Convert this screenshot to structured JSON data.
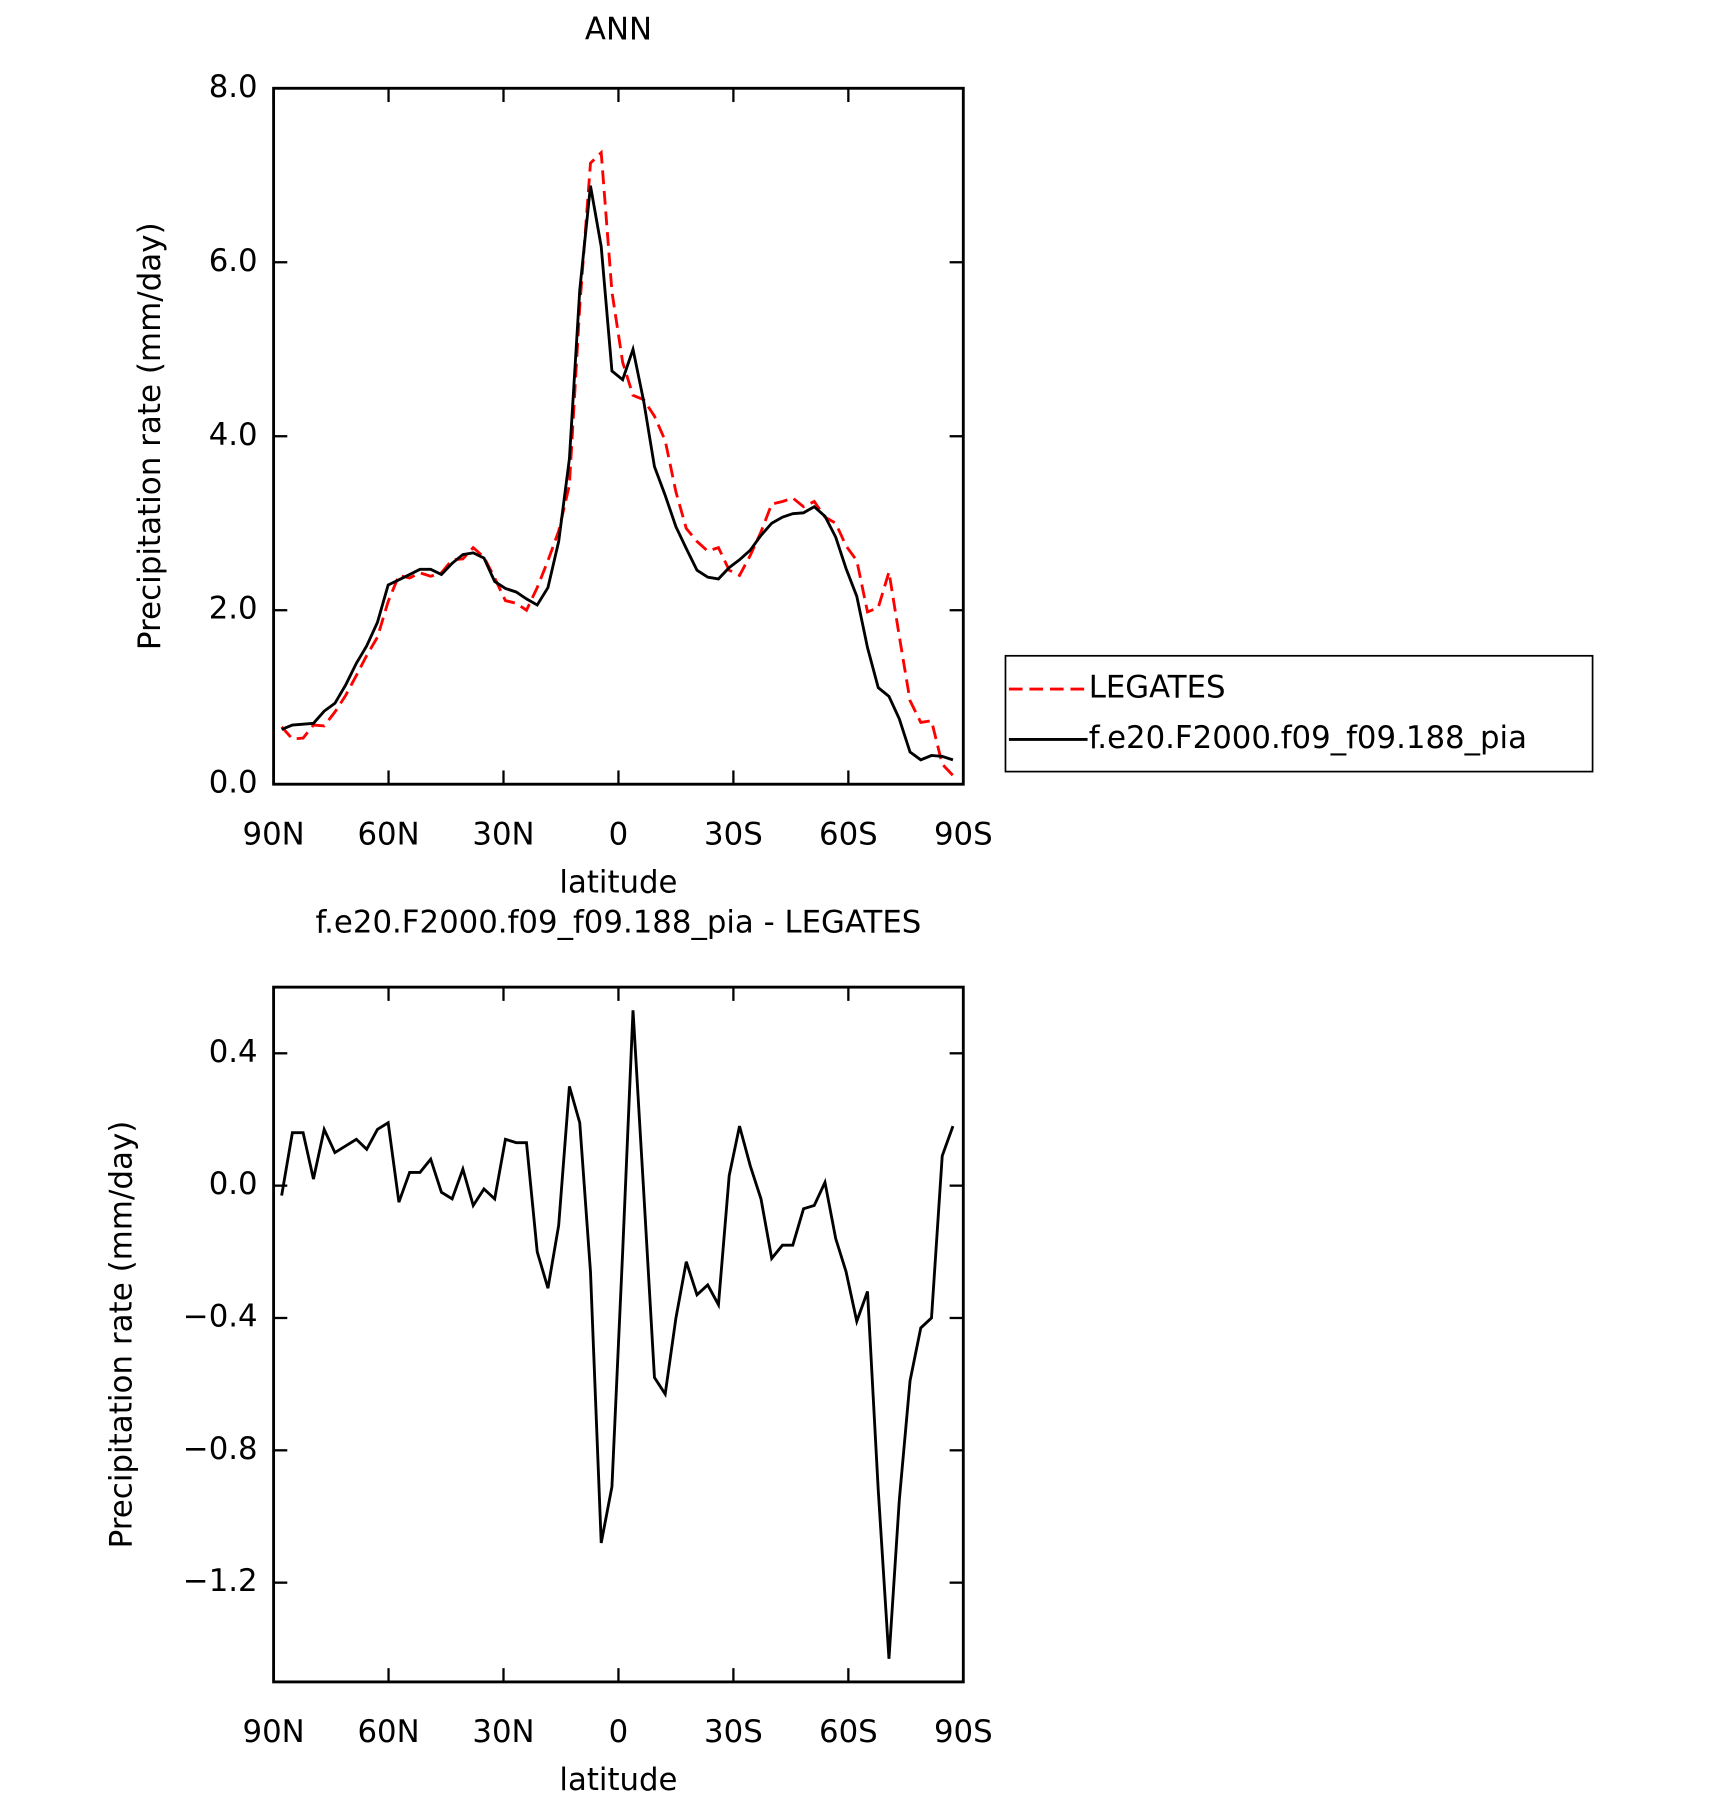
{
  "chart_data": [
    {
      "type": "line",
      "title": "ANN",
      "x_label": "latitude",
      "y_label": "Precipitation rate (mm/day)",
      "x": [
        87.9,
        85.1,
        82.3,
        79.6,
        76.8,
        74.0,
        71.2,
        68.4,
        65.7,
        62.9,
        60.1,
        57.3,
        54.5,
        51.8,
        49.0,
        46.2,
        43.4,
        40.6,
        37.9,
        35.1,
        32.3,
        29.5,
        26.7,
        24.0,
        21.2,
        18.4,
        15.6,
        12.8,
        10.1,
        7.3,
        4.5,
        1.7,
        -1.1,
        -3.8,
        -6.6,
        -9.4,
        -12.2,
        -15.0,
        -17.7,
        -20.5,
        -23.3,
        -26.1,
        -28.9,
        -31.6,
        -34.4,
        -37.2,
        -40.0,
        -42.8,
        -45.5,
        -48.3,
        -51.1,
        -53.9,
        -56.7,
        -59.4,
        -62.2,
        -65.0,
        -67.8,
        -70.6,
        -73.3,
        -76.1,
        -78.9,
        -81.7,
        -84.5,
        -87.3
      ],
      "series": [
        {
          "name": "LEGATES",
          "color": "#ff0000",
          "dash": true,
          "values": [
            0.66,
            0.52,
            0.53,
            0.68,
            0.67,
            0.83,
            1.02,
            1.25,
            1.48,
            1.69,
            2.1,
            2.4,
            2.37,
            2.43,
            2.39,
            2.43,
            2.58,
            2.59,
            2.72,
            2.61,
            2.37,
            2.11,
            2.08,
            2.0,
            2.26,
            2.57,
            2.91,
            3.44,
            5.49,
            7.14,
            7.26,
            5.66,
            4.85,
            4.47,
            4.42,
            4.23,
            3.95,
            3.36,
            2.94,
            2.79,
            2.68,
            2.72,
            2.46,
            2.4,
            2.63,
            2.9,
            3.22,
            3.25,
            3.29,
            3.19,
            3.25,
            3.07,
            3.0,
            2.74,
            2.57,
            1.98,
            2.03,
            2.44,
            1.7,
            0.96,
            0.71,
            0.73,
            0.23,
            0.1
          ]
        },
        {
          "name": "f.e20.F2000.f09_f09.188_pia",
          "color": "#000000",
          "dash": false,
          "values": [
            0.63,
            0.68,
            0.69,
            0.7,
            0.84,
            0.93,
            1.14,
            1.39,
            1.59,
            1.86,
            2.29,
            2.35,
            2.41,
            2.47,
            2.47,
            2.41,
            2.54,
            2.64,
            2.66,
            2.6,
            2.33,
            2.25,
            2.21,
            2.13,
            2.06,
            2.26,
            2.79,
            3.74,
            5.68,
            6.88,
            6.18,
            4.75,
            4.65,
            5.0,
            4.4,
            3.65,
            3.32,
            2.96,
            2.71,
            2.46,
            2.38,
            2.36,
            2.49,
            2.58,
            2.69,
            2.86,
            3.0,
            3.07,
            3.11,
            3.12,
            3.19,
            3.08,
            2.84,
            2.48,
            2.16,
            1.57,
            1.11,
            1.01,
            0.75,
            0.37,
            0.28,
            0.33,
            0.32,
            0.28
          ]
        }
      ],
      "xlim": [
        90,
        -90
      ],
      "xticks": [
        {
          "value": 90,
          "label": "90N"
        },
        {
          "value": 60,
          "label": "60N"
        },
        {
          "value": 30,
          "label": "30N"
        },
        0,
        {
          "value": -30,
          "label": "30S"
        },
        {
          "value": -60,
          "label": "60S"
        },
        {
          "value": -90,
          "label": "90S"
        }
      ],
      "ylim": [
        0,
        8
      ],
      "yticks": [
        {
          "value": 0,
          "label": "0.0"
        },
        {
          "value": 2,
          "label": "2.0"
        },
        {
          "value": 4,
          "label": "4.0"
        },
        {
          "value": 6,
          "label": "6.0"
        },
        {
          "value": 8,
          "label": "8.0"
        }
      ],
      "legend": "right"
    },
    {
      "type": "line",
      "title": "f.e20.F2000.f09_f09.188_pia - LEGATES",
      "x_label": "latitude",
      "y_label": "Precipitation rate (mm/day)",
      "x": [
        87.9,
        85.1,
        82.3,
        79.6,
        76.8,
        74.0,
        71.2,
        68.4,
        65.7,
        62.9,
        60.1,
        57.3,
        54.5,
        51.8,
        49.0,
        46.2,
        43.4,
        40.6,
        37.9,
        35.1,
        32.3,
        29.5,
        26.7,
        24.0,
        21.2,
        18.4,
        15.6,
        12.8,
        10.1,
        7.3,
        4.5,
        1.7,
        -1.1,
        -3.8,
        -6.6,
        -9.4,
        -12.2,
        -15.0,
        -17.7,
        -20.5,
        -23.3,
        -26.1,
        -28.9,
        -31.6,
        -34.4,
        -37.2,
        -40.0,
        -42.8,
        -45.5,
        -48.3,
        -51.1,
        -53.9,
        -56.7,
        -59.4,
        -62.2,
        -65.0,
        -67.8,
        -70.6,
        -73.3,
        -76.1,
        -78.9,
        -81.7,
        -84.5,
        -87.3
      ],
      "series": [
        {
          "color": "#000000",
          "dash": false,
          "values": [
            -0.03,
            0.16,
            0.16,
            0.02,
            0.17,
            0.1,
            0.12,
            0.14,
            0.11,
            0.17,
            0.19,
            -0.05,
            0.04,
            0.04,
            0.08,
            -0.02,
            -0.04,
            0.05,
            -0.06,
            -0.01,
            -0.04,
            0.14,
            0.13,
            0.13,
            -0.2,
            -0.31,
            -0.12,
            0.3,
            0.19,
            -0.26,
            -1.08,
            -0.91,
            -0.2,
            0.53,
            -0.02,
            -0.58,
            -0.63,
            -0.4,
            -0.23,
            -0.33,
            -0.3,
            -0.36,
            0.03,
            0.18,
            0.06,
            -0.04,
            -0.22,
            -0.18,
            -0.18,
            -0.07,
            -0.06,
            0.01,
            -0.16,
            -0.26,
            -0.41,
            -0.32,
            -0.92,
            -1.43,
            -0.95,
            -0.59,
            -0.43,
            -0.4,
            0.09,
            0.18
          ]
        }
      ],
      "xlim": [
        90,
        -90
      ],
      "xticks": [
        {
          "value": 90,
          "label": "90N"
        },
        {
          "value": 60,
          "label": "60N"
        },
        {
          "value": 30,
          "label": "30N"
        },
        0,
        {
          "value": -30,
          "label": "30S"
        },
        {
          "value": -60,
          "label": "60S"
        },
        {
          "value": -90,
          "label": "90S"
        }
      ],
      "ylim": [
        -1.5,
        0.6
      ],
      "yticks": [
        {
          "value": 0.4,
          "label": "0.4"
        },
        {
          "value": 0,
          "label": "0.0"
        },
        {
          "value": -0.4,
          "label": "−0.4"
        },
        {
          "value": -0.8,
          "label": "−0.8"
        },
        {
          "value": -1.2,
          "label": "−1.2"
        }
      ]
    }
  ]
}
